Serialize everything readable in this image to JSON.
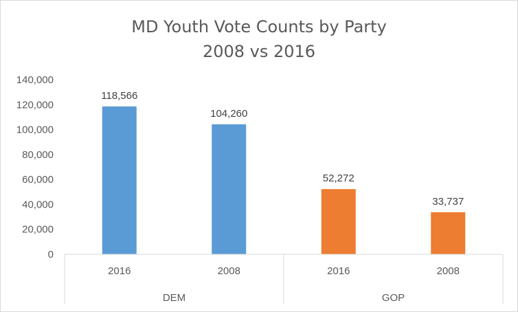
{
  "chart_data": {
    "type": "bar",
    "title": "MD Youth Vote Counts by Party",
    "subtitle": "2008 vs 2016",
    "ylim": [
      0,
      140000
    ],
    "yticks": [
      "140,000",
      "120,000",
      "100,000",
      "80,000",
      "60,000",
      "40,000",
      "20,000",
      "0"
    ],
    "grid": false,
    "legend": "none",
    "groups": [
      {
        "name": "DEM",
        "color": "#5b9bd5",
        "categories": [
          "2016",
          "2008"
        ],
        "values": [
          118566,
          104260
        ],
        "labels": [
          "118,566",
          "104,260"
        ]
      },
      {
        "name": "GOP",
        "color": "#ed7d31",
        "categories": [
          "2016",
          "2008"
        ],
        "values": [
          52272,
          33737
        ],
        "labels": [
          "52,272",
          "33,737"
        ]
      }
    ]
  }
}
